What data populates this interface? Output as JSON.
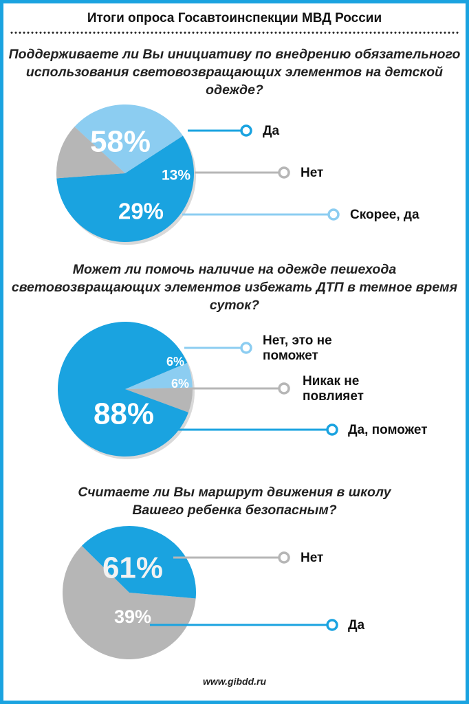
{
  "header": {
    "title": "Итоги опроса Госавтоинспекции МВД России"
  },
  "footer": {
    "source": "www.gibdd.ru"
  },
  "colors": {
    "dark_blue": "#1aa3e0",
    "light_blue": "#8ccdf1",
    "gray": "#b6b6b6",
    "white": "#ffffff"
  },
  "chart_data": [
    {
      "type": "pie",
      "title": "Поддерживаете ли Вы инициативу по внедрению обязательного использования световозвращающих элементов на детской одежде?",
      "slices": [
        {
          "label": "Да",
          "value": 58,
          "text": "58%",
          "color": "#1aa3e0"
        },
        {
          "label": "Нет",
          "value": 13,
          "text": "13%",
          "color": "#b6b6b6"
        },
        {
          "label": "Скорее, да",
          "value": 29,
          "text": "29%",
          "color": "#8ccdf1"
        }
      ]
    },
    {
      "type": "pie",
      "title": "Может ли помочь наличие на одежде пешехода световозвращающих элементов избежать ДТП в темное время суток?",
      "slices": [
        {
          "label": "Нет, это не поможет",
          "value": 6,
          "text": "6%",
          "color": "#8ccdf1"
        },
        {
          "label": "Никак не повлияет",
          "value": 6,
          "text": "6%",
          "color": "#b6b6b6"
        },
        {
          "label": "Да, поможет",
          "value": 88,
          "text": "88%",
          "color": "#1aa3e0"
        }
      ]
    },
    {
      "type": "pie",
      "title": "Считаете ли Вы маршрут движения в школу Вашего ребенка безопасным?",
      "slices": [
        {
          "label": "Нет",
          "value": 61,
          "text": "61%",
          "color": "#b6b6b6"
        },
        {
          "label": "Да",
          "value": 39,
          "text": "39%",
          "color": "#1aa3e0"
        }
      ]
    }
  ]
}
